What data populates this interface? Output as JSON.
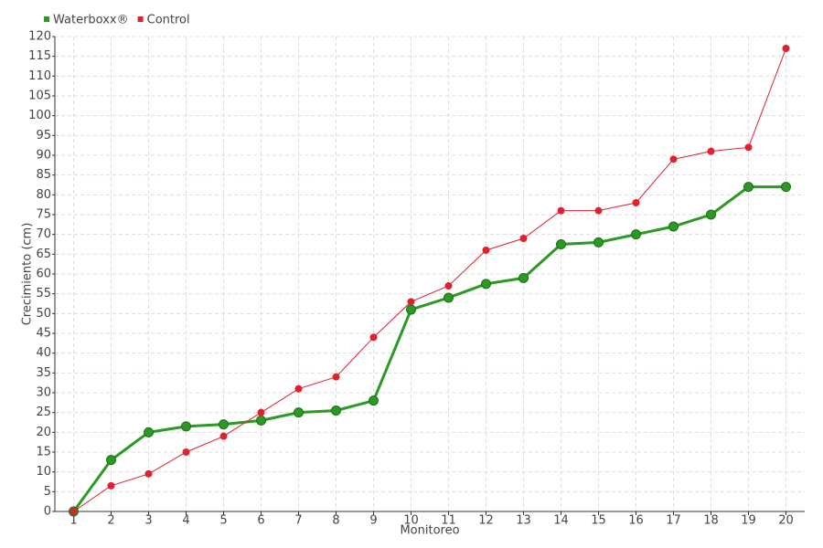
{
  "chart_data": {
    "type": "line",
    "x_label": "Monitoreo",
    "y_label": "Crecimiento (cm)",
    "categories": [
      "1",
      "2",
      "3",
      "4",
      "5",
      "6",
      "7",
      "8",
      "9",
      "10",
      "11",
      "12",
      "13",
      "14",
      "15",
      "16",
      "17",
      "18",
      "19",
      "20"
    ],
    "series": [
      {
        "name": "Waterboxx®",
        "color": "#2a9a22",
        "values": [
          0,
          13,
          20,
          21.5,
          22,
          23,
          25,
          25.5,
          28,
          51,
          54,
          57.5,
          59,
          67.5,
          68,
          70,
          72,
          75,
          82,
          82
        ]
      },
      {
        "name": "Control",
        "color": "#e0202e",
        "values": [
          0,
          6.5,
          9.5,
          15,
          19,
          25,
          31,
          34,
          44,
          53,
          57,
          66,
          69,
          76,
          76,
          78,
          89,
          91,
          92,
          117
        ]
      }
    ],
    "ylim": [
      0,
      120
    ],
    "yticks": [
      0,
      5,
      10,
      15,
      20,
      25,
      30,
      35,
      40,
      45,
      50,
      55,
      60,
      65,
      70,
      75,
      80,
      85,
      90,
      95,
      100,
      105,
      110,
      115,
      120
    ],
    "grid": true,
    "legend": "top-left"
  }
}
